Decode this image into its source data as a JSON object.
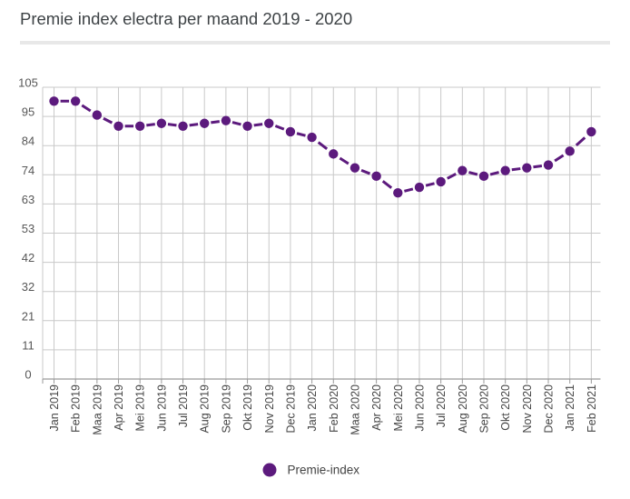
{
  "header": {
    "title": "Premie index electra per maand 2019 - 2020"
  },
  "legend": {
    "label": "Premie-index"
  },
  "chart_data": {
    "type": "line",
    "title": "Premie index electra per maand 2019 - 2020",
    "categories": [
      "Jan 2019",
      "Feb 2019",
      "Maa 2019",
      "Apr 2019",
      "Mei 2019",
      "Jun 2019",
      "Jul 2019",
      "Aug 2019",
      "Sep 2019",
      "Okt 2019",
      "Nov 2019",
      "Dec 2019",
      "Jan 2020",
      "Feb 2020",
      "Maa 2020",
      "Apr 2020",
      "Mei 2020",
      "Jun 2020",
      "Jul 2020",
      "Aug 2020",
      "Sep 2020",
      "Okt 2020",
      "Nov 2020",
      "Dec 2020",
      "Jan 2021",
      "Feb 2021"
    ],
    "series": [
      {
        "name": "Premie-index",
        "values": [
          100,
          100,
          95,
          91,
          91,
          92,
          91,
          92,
          93,
          91,
          92,
          89,
          87,
          81,
          76,
          73,
          67,
          69,
          71,
          75,
          73,
          75,
          76,
          77,
          82,
          89
        ]
      }
    ],
    "ylim": [
      0,
      105
    ],
    "y_ticks": [
      {
        "label": "105",
        "value": 105
      },
      {
        "label": "95",
        "value": 94.5
      },
      {
        "label": "84",
        "value": 84
      },
      {
        "label": "74",
        "value": 73.5
      },
      {
        "label": "63",
        "value": 63
      },
      {
        "label": "53",
        "value": 52.5
      },
      {
        "label": "42",
        "value": 42
      },
      {
        "label": "32",
        "value": 31.5
      },
      {
        "label": "21",
        "value": 21
      },
      {
        "label": "11",
        "value": 10.5
      },
      {
        "label": "0",
        "value": 0
      }
    ],
    "grid": true,
    "line_style": "dashed",
    "marker": "circle",
    "legend_position": "bottom",
    "colors": {
      "series": "#5c1a7d",
      "gridline": "#c9c9c9",
      "axis": "#9a9a9a",
      "y_label": "#575757",
      "x_label": "#454545",
      "legend_text": "#424242",
      "title": "#3d4245",
      "divider": "#e8e8e8"
    }
  }
}
